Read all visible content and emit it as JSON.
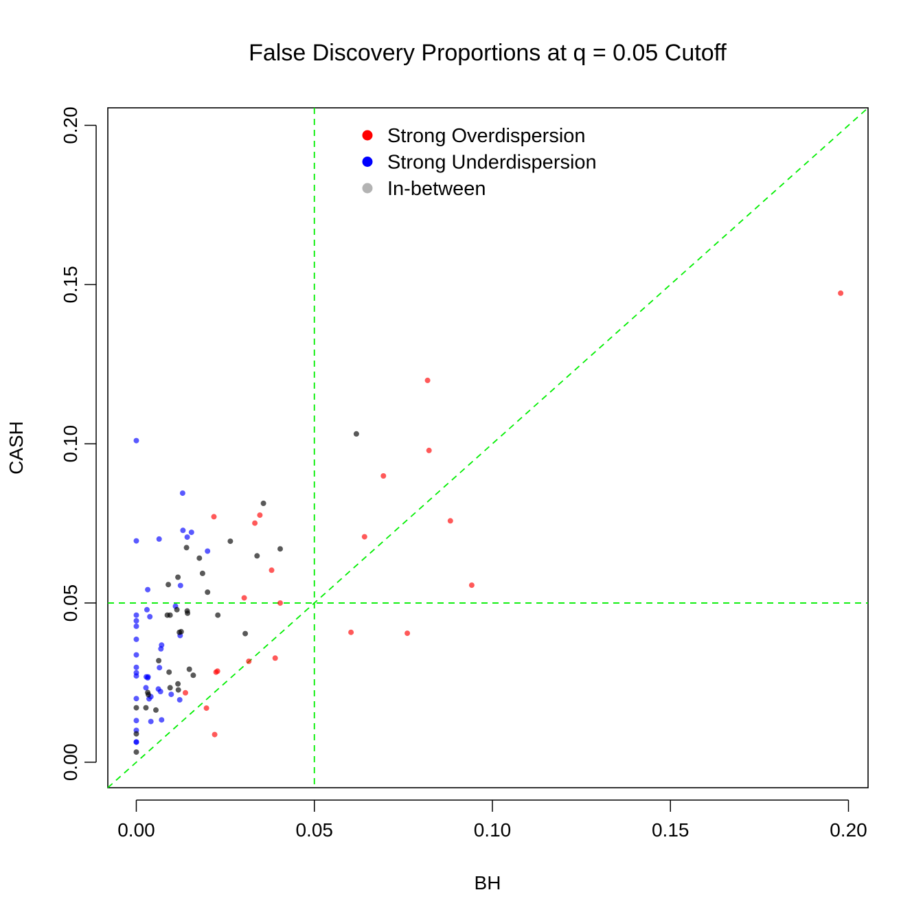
{
  "chart_data": {
    "type": "scatter",
    "title": "False Discovery Proportions at q = 0.05 Cutoff",
    "xlabel": "BH",
    "ylabel": "CASH",
    "xlim": [
      -0.008,
      0.2055
    ],
    "ylim": [
      -0.008,
      0.2055
    ],
    "xticks": [
      0.0,
      0.05,
      0.1,
      0.15,
      0.2
    ],
    "yticks": [
      0.0,
      0.05,
      0.1,
      0.15,
      0.2
    ],
    "xtick_labels": [
      "0.00",
      "0.05",
      "0.10",
      "0.15",
      "0.20"
    ],
    "ytick_labels": [
      "0.00",
      "0.05",
      "0.10",
      "0.15",
      "0.20"
    ],
    "grid": false,
    "legend_position": "top-center",
    "reference_lines": {
      "vertical_x": 0.05,
      "horizontal_y": 0.05,
      "diagonal": "y = x",
      "style": "dashed",
      "color": "#00ee00"
    },
    "series": [
      {
        "name": "Strong Overdispersion",
        "color": "#ff0000",
        "points": [
          [
            0.1978,
            0.1473
          ],
          [
            0.0818,
            0.1199
          ],
          [
            0.0822,
            0.0979
          ],
          [
            0.0694,
            0.0899
          ],
          [
            0.0882,
            0.0758
          ],
          [
            0.0641,
            0.0708
          ],
          [
            0.0942,
            0.0556
          ],
          [
            0.0603,
            0.0408
          ],
          [
            0.0761,
            0.0405
          ],
          [
            0.0218,
            0.0771
          ],
          [
            0.0347,
            0.0776
          ],
          [
            0.0333,
            0.0751
          ],
          [
            0.038,
            0.0603
          ],
          [
            0.0404,
            0.05
          ],
          [
            0.0303,
            0.0516
          ],
          [
            0.039,
            0.0327
          ],
          [
            0.0316,
            0.0317
          ],
          [
            0.0228,
            0.0286
          ],
          [
            0.0224,
            0.0283
          ],
          [
            0.0138,
            0.0218
          ],
          [
            0.0197,
            0.017
          ],
          [
            0.022,
            0.0087
          ]
        ]
      },
      {
        "name": "Strong Underdispersion",
        "color": "#0000ff",
        "points": [
          [
            0.0,
            0.101
          ],
          [
            0.0,
            0.0695
          ],
          [
            0.0,
            0.0462
          ],
          [
            0.0,
            0.0444
          ],
          [
            0.0,
            0.0427
          ],
          [
            0.0,
            0.0386
          ],
          [
            0.0,
            0.0337
          ],
          [
            0.0,
            0.0298
          ],
          [
            0.0,
            0.0281
          ],
          [
            0.0,
            0.0271
          ],
          [
            0.0,
            0.02
          ],
          [
            0.0,
            0.0131
          ],
          [
            0.0,
            0.01
          ],
          [
            0.0,
            0.0064
          ],
          [
            0.0,
            0.0063
          ],
          [
            0.013,
            0.0845
          ],
          [
            0.0131,
            0.0728
          ],
          [
            0.0155,
            0.0722
          ],
          [
            0.0143,
            0.0707
          ],
          [
            0.0064,
            0.0701
          ],
          [
            0.02,
            0.0663
          ],
          [
            0.0124,
            0.0555
          ],
          [
            0.0032,
            0.0542
          ],
          [
            0.003,
            0.0479
          ],
          [
            0.011,
            0.049
          ],
          [
            0.0038,
            0.0457
          ],
          [
            0.0123,
            0.0398
          ],
          [
            0.0071,
            0.0368
          ],
          [
            0.0069,
            0.0356
          ],
          [
            0.0065,
            0.0297
          ],
          [
            0.0028,
            0.0268
          ],
          [
            0.0032,
            0.0265
          ],
          [
            0.0033,
            0.0268
          ],
          [
            0.0027,
            0.0234
          ],
          [
            0.0062,
            0.023
          ],
          [
            0.0068,
            0.0222
          ],
          [
            0.0098,
            0.0213
          ],
          [
            0.0036,
            0.0199
          ],
          [
            0.0041,
            0.0206
          ],
          [
            0.0122,
            0.0196
          ],
          [
            0.0071,
            0.0133
          ],
          [
            0.0041,
            0.0128
          ]
        ]
      },
      {
        "name": "In-between",
        "color": "#000000",
        "points": [
          [
            0.0618,
            0.1031
          ],
          [
            0.0357,
            0.0813
          ],
          [
            0.0264,
            0.0694
          ],
          [
            0.0404,
            0.067
          ],
          [
            0.0141,
            0.0674
          ],
          [
            0.0339,
            0.0648
          ],
          [
            0.0177,
            0.0641
          ],
          [
            0.0186,
            0.0593
          ],
          [
            0.0117,
            0.0581
          ],
          [
            0.009,
            0.0558
          ],
          [
            0.02,
            0.0534
          ],
          [
            0.0114,
            0.0479
          ],
          [
            0.0143,
            0.0475
          ],
          [
            0.0144,
            0.0468
          ],
          [
            0.0095,
            0.0462
          ],
          [
            0.0087,
            0.0462
          ],
          [
            0.0229,
            0.0462
          ],
          [
            0.0121,
            0.0408
          ],
          [
            0.0126,
            0.041
          ],
          [
            0.0306,
            0.0404
          ],
          [
            0.0063,
            0.0319
          ],
          [
            0.0149,
            0.0292
          ],
          [
            0.0092,
            0.0283
          ],
          [
            0.016,
            0.0273
          ],
          [
            0.0117,
            0.0246
          ],
          [
            0.0095,
            0.0234
          ],
          [
            0.0118,
            0.0227
          ],
          [
            0.0032,
            0.0219
          ],
          [
            0.0034,
            0.0212
          ],
          [
            0.0,
            0.0171
          ],
          [
            0.0027,
            0.0171
          ],
          [
            0.0055,
            0.0164
          ],
          [
            0.0,
            0.0089
          ],
          [
            0.0,
            0.0032
          ]
        ]
      }
    ]
  }
}
